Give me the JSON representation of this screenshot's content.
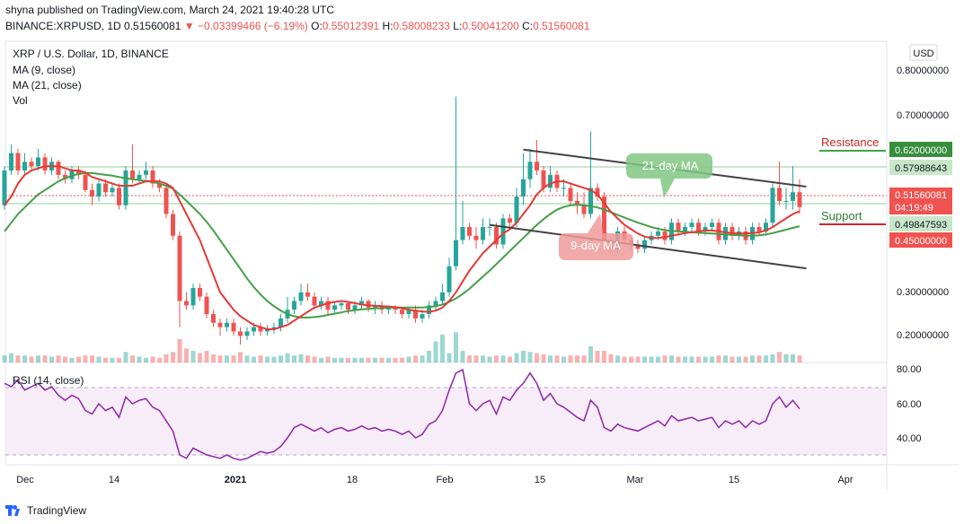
{
  "header": {
    "published": "shyna published on TradingView.com, March 24, 2021 19:40:28 UTC",
    "symbol": "BINANCE:XRPUSD, 1D",
    "last": "0.51560081",
    "change": "▼ −0.03399466 (−6.19%)",
    "o_label": "O:",
    "o": "0.55012391",
    "h_label": "H:",
    "h": "0.58008233",
    "l_label": "L:",
    "l": "0.50041200",
    "c_label": "C:",
    "c": "0.51560081"
  },
  "legend": {
    "title": "XRP / U.S. Dollar, 1D, BINANCE",
    "ma9": "MA (9, close)",
    "ma21": "MA (21, close)",
    "vol": "Vol",
    "rsi": "RSI (14, close)"
  },
  "currency_button": "USD",
  "price_axis": [
    "0.80000000",
    "0.70000000",
    "0.30000000",
    "0.20000000"
  ],
  "price_labels": {
    "p0620": "0.62000000",
    "p0580": "0.57988643",
    "p0516": "0.51560081",
    "countdown": "04:19:49",
    "p0498": "0.49847593",
    "p0450": "0.45000000"
  },
  "rsi_axis": [
    "80.00",
    "60.00",
    "40.00"
  ],
  "date_axis": [
    "Dec",
    "14",
    "2021",
    "18",
    "Feb",
    "15",
    "Mar",
    "15",
    "Apr"
  ],
  "annotations": {
    "resistance": "Resistance",
    "support": "Support",
    "ma21_tag": "21-day MA",
    "ma9_tag": "9-day MA"
  },
  "logo_text": "TradingView",
  "colors": {
    "up": "#26a69a",
    "down": "#ef5350",
    "ma9": "#e53935",
    "ma21": "#43a047",
    "rsi": "#8e24aa",
    "channel": "#424242"
  },
  "chart_data": {
    "type": "candlestick",
    "title": "XRP / U.S. Dollar, 1D, BINANCE",
    "x_dates": [
      "2020-11-26",
      "2020-11-27",
      "2020-11-28",
      "2020-11-29",
      "2020-11-30",
      "2020-12-01",
      "2020-12-02",
      "2020-12-03",
      "2020-12-04",
      "2020-12-05",
      "2020-12-06",
      "2020-12-07",
      "2020-12-08",
      "2020-12-09",
      "2020-12-10",
      "2020-12-11",
      "2020-12-12",
      "2020-12-13",
      "2020-12-14",
      "2020-12-15",
      "2020-12-16",
      "2020-12-17",
      "2020-12-18",
      "2020-12-19",
      "2020-12-20",
      "2020-12-21",
      "2020-12-22",
      "2020-12-23",
      "2020-12-24",
      "2020-12-25",
      "2020-12-26",
      "2020-12-27",
      "2020-12-28",
      "2020-12-29",
      "2020-12-30",
      "2020-12-31",
      "2021-01-01",
      "2021-01-02",
      "2021-01-03",
      "2021-01-04",
      "2021-01-05",
      "2021-01-06",
      "2021-01-07",
      "2021-01-08",
      "2021-01-09",
      "2021-01-10",
      "2021-01-11",
      "2021-01-12",
      "2021-01-13",
      "2021-01-14",
      "2021-01-15",
      "2021-01-16",
      "2021-01-17",
      "2021-01-18",
      "2021-01-19",
      "2021-01-20",
      "2021-01-21",
      "2021-01-22",
      "2021-01-23",
      "2021-01-24",
      "2021-01-25",
      "2021-01-26",
      "2021-01-27",
      "2021-01-28",
      "2021-01-29",
      "2021-01-30",
      "2021-01-31",
      "2021-02-01",
      "2021-02-02",
      "2021-02-03",
      "2021-02-04",
      "2021-02-05",
      "2021-02-06",
      "2021-02-07",
      "2021-02-08",
      "2021-02-09",
      "2021-02-10",
      "2021-02-11",
      "2021-02-12",
      "2021-02-13",
      "2021-02-14",
      "2021-02-15",
      "2021-02-16",
      "2021-02-17",
      "2021-02-18",
      "2021-02-19",
      "2021-02-20",
      "2021-02-21",
      "2021-02-22",
      "2021-02-23",
      "2021-02-24",
      "2021-02-25",
      "2021-02-26",
      "2021-02-27",
      "2021-02-28",
      "2021-03-01",
      "2021-03-02",
      "2021-03-03",
      "2021-03-04",
      "2021-03-05",
      "2021-03-06",
      "2021-03-07",
      "2021-03-08",
      "2021-03-09",
      "2021-03-10",
      "2021-03-11",
      "2021-03-12",
      "2021-03-13",
      "2021-03-14",
      "2021-03-15",
      "2021-03-16",
      "2021-03-17",
      "2021-03-18",
      "2021-03-19",
      "2021-03-20",
      "2021-03-21",
      "2021-03-22",
      "2021-03-23",
      "2021-03-24"
    ],
    "open": [
      0.52,
      0.6,
      0.64,
      0.6,
      0.62,
      0.61,
      0.63,
      0.6,
      0.62,
      0.59,
      0.58,
      0.6,
      0.59,
      0.555,
      0.54,
      0.57,
      0.55,
      0.56,
      0.52,
      0.6,
      0.58,
      0.59,
      0.6,
      0.57,
      0.56,
      0.5,
      0.45,
      0.3,
      0.29,
      0.33,
      0.31,
      0.27,
      0.25,
      0.24,
      0.25,
      0.23,
      0.22,
      0.23,
      0.24,
      0.23,
      0.235,
      0.24,
      0.26,
      0.28,
      0.3,
      0.32,
      0.31,
      0.29,
      0.3,
      0.28,
      0.29,
      0.295,
      0.28,
      0.29,
      0.3,
      0.285,
      0.29,
      0.28,
      0.285,
      0.28,
      0.27,
      0.28,
      0.26,
      0.27,
      0.29,
      0.3,
      0.32,
      0.38,
      0.44,
      0.47,
      0.45,
      0.44,
      0.47,
      0.47,
      0.43,
      0.49,
      0.48,
      0.54,
      0.58,
      0.62,
      0.6,
      0.56,
      0.59,
      0.56,
      0.56,
      0.53,
      0.52,
      0.5,
      0.56,
      0.54,
      0.44,
      0.42,
      0.46,
      0.44,
      0.43,
      0.42,
      0.44,
      0.45,
      0.46,
      0.44,
      0.48,
      0.46,
      0.47,
      0.48,
      0.46,
      0.47,
      0.48,
      0.44,
      0.47,
      0.45,
      0.46,
      0.44,
      0.47,
      0.46,
      0.48,
      0.56,
      0.53,
      0.53,
      0.55
    ],
    "close": [
      0.6,
      0.64,
      0.6,
      0.62,
      0.61,
      0.63,
      0.6,
      0.62,
      0.59,
      0.58,
      0.6,
      0.59,
      0.555,
      0.54,
      0.57,
      0.55,
      0.56,
      0.52,
      0.6,
      0.58,
      0.59,
      0.6,
      0.57,
      0.56,
      0.5,
      0.45,
      0.3,
      0.29,
      0.33,
      0.31,
      0.27,
      0.25,
      0.24,
      0.25,
      0.23,
      0.22,
      0.23,
      0.24,
      0.23,
      0.235,
      0.24,
      0.26,
      0.28,
      0.3,
      0.32,
      0.31,
      0.29,
      0.3,
      0.28,
      0.29,
      0.295,
      0.28,
      0.29,
      0.3,
      0.285,
      0.29,
      0.28,
      0.285,
      0.28,
      0.27,
      0.28,
      0.26,
      0.27,
      0.29,
      0.3,
      0.32,
      0.38,
      0.44,
      0.47,
      0.45,
      0.44,
      0.47,
      0.47,
      0.43,
      0.49,
      0.48,
      0.54,
      0.58,
      0.62,
      0.6,
      0.56,
      0.59,
      0.56,
      0.56,
      0.53,
      0.52,
      0.5,
      0.56,
      0.54,
      0.44,
      0.42,
      0.46,
      0.44,
      0.43,
      0.42,
      0.44,
      0.45,
      0.46,
      0.44,
      0.48,
      0.46,
      0.47,
      0.48,
      0.46,
      0.47,
      0.48,
      0.44,
      0.47,
      0.45,
      0.46,
      0.44,
      0.47,
      0.46,
      0.48,
      0.56,
      0.53,
      0.53,
      0.55,
      0.516
    ],
    "high": [
      0.61,
      0.66,
      0.65,
      0.64,
      0.63,
      0.65,
      0.64,
      0.63,
      0.625,
      0.6,
      0.61,
      0.61,
      0.6,
      0.57,
      0.58,
      0.58,
      0.57,
      0.57,
      0.61,
      0.66,
      0.6,
      0.62,
      0.61,
      0.58,
      0.57,
      0.51,
      0.46,
      0.32,
      0.34,
      0.34,
      0.32,
      0.28,
      0.26,
      0.26,
      0.26,
      0.24,
      0.24,
      0.25,
      0.25,
      0.245,
      0.25,
      0.27,
      0.31,
      0.31,
      0.34,
      0.34,
      0.32,
      0.31,
      0.31,
      0.3,
      0.3,
      0.3,
      0.3,
      0.31,
      0.305,
      0.3,
      0.3,
      0.29,
      0.29,
      0.285,
      0.285,
      0.29,
      0.28,
      0.3,
      0.31,
      0.34,
      0.4,
      0.77,
      0.53,
      0.48,
      0.47,
      0.49,
      0.49,
      0.48,
      0.5,
      0.5,
      0.56,
      0.64,
      0.65,
      0.67,
      0.61,
      0.61,
      0.6,
      0.58,
      0.57,
      0.55,
      0.55,
      0.69,
      0.57,
      0.55,
      0.45,
      0.47,
      0.47,
      0.45,
      0.44,
      0.45,
      0.46,
      0.47,
      0.47,
      0.49,
      0.49,
      0.48,
      0.49,
      0.49,
      0.48,
      0.49,
      0.49,
      0.48,
      0.48,
      0.47,
      0.47,
      0.48,
      0.48,
      0.49,
      0.57,
      0.62,
      0.56,
      0.61,
      0.58
    ],
    "low": [
      0.51,
      0.59,
      0.59,
      0.59,
      0.6,
      0.6,
      0.59,
      0.59,
      0.58,
      0.57,
      0.57,
      0.58,
      0.55,
      0.52,
      0.53,
      0.54,
      0.54,
      0.51,
      0.51,
      0.57,
      0.57,
      0.58,
      0.56,
      0.55,
      0.49,
      0.44,
      0.24,
      0.28,
      0.28,
      0.3,
      0.26,
      0.24,
      0.22,
      0.23,
      0.22,
      0.2,
      0.21,
      0.22,
      0.22,
      0.22,
      0.225,
      0.23,
      0.25,
      0.27,
      0.29,
      0.3,
      0.28,
      0.28,
      0.27,
      0.27,
      0.28,
      0.27,
      0.27,
      0.28,
      0.275,
      0.27,
      0.27,
      0.27,
      0.27,
      0.26,
      0.26,
      0.25,
      0.25,
      0.26,
      0.28,
      0.29,
      0.31,
      0.37,
      0.43,
      0.44,
      0.42,
      0.43,
      0.45,
      0.42,
      0.42,
      0.47,
      0.47,
      0.52,
      0.56,
      0.59,
      0.55,
      0.55,
      0.55,
      0.54,
      0.52,
      0.5,
      0.49,
      0.49,
      0.53,
      0.43,
      0.41,
      0.41,
      0.43,
      0.42,
      0.41,
      0.41,
      0.43,
      0.44,
      0.43,
      0.43,
      0.45,
      0.45,
      0.46,
      0.45,
      0.45,
      0.46,
      0.43,
      0.43,
      0.44,
      0.44,
      0.43,
      0.43,
      0.45,
      0.45,
      0.47,
      0.52,
      0.51,
      0.51,
      0.5
    ],
    "volume_relative": [
      0.3,
      0.4,
      0.3,
      0.3,
      0.25,
      0.3,
      0.3,
      0.25,
      0.3,
      0.25,
      0.2,
      0.25,
      0.3,
      0.3,
      0.25,
      0.2,
      0.2,
      0.2,
      0.45,
      0.3,
      0.25,
      0.2,
      0.25,
      0.2,
      0.35,
      0.45,
      1.0,
      0.6,
      0.5,
      0.4,
      0.5,
      0.35,
      0.3,
      0.3,
      0.3,
      0.45,
      0.3,
      0.25,
      0.3,
      0.25,
      0.25,
      0.3,
      0.4,
      0.3,
      0.35,
      0.3,
      0.25,
      0.2,
      0.25,
      0.2,
      0.2,
      0.2,
      0.2,
      0.2,
      0.2,
      0.2,
      0.2,
      0.2,
      0.2,
      0.2,
      0.25,
      0.3,
      0.3,
      0.5,
      0.9,
      1.2,
      0.4,
      1.3,
      0.5,
      0.3,
      0.3,
      0.3,
      0.25,
      0.3,
      0.3,
      0.25,
      0.4,
      0.5,
      0.45,
      0.4,
      0.35,
      0.3,
      0.3,
      0.25,
      0.3,
      0.3,
      0.3,
      0.7,
      0.5,
      0.5,
      0.35,
      0.3,
      0.25,
      0.25,
      0.25,
      0.25,
      0.25,
      0.25,
      0.3,
      0.3,
      0.25,
      0.25,
      0.25,
      0.25,
      0.25,
      0.25,
      0.3,
      0.3,
      0.25,
      0.25,
      0.25,
      0.3,
      0.3,
      0.3,
      0.35,
      0.45,
      0.35,
      0.35,
      0.3
    ],
    "ma9": [
      0.52,
      0.54,
      0.57,
      0.59,
      0.6,
      0.605,
      0.61,
      0.61,
      0.61,
      0.605,
      0.6,
      0.6,
      0.595,
      0.585,
      0.58,
      0.575,
      0.57,
      0.565,
      0.565,
      0.565,
      0.57,
      0.575,
      0.575,
      0.575,
      0.57,
      0.56,
      0.53,
      0.5,
      0.47,
      0.44,
      0.4,
      0.36,
      0.32,
      0.3,
      0.28,
      0.265,
      0.255,
      0.245,
      0.24,
      0.235,
      0.235,
      0.24,
      0.245,
      0.255,
      0.265,
      0.275,
      0.285,
      0.29,
      0.295,
      0.298,
      0.3,
      0.298,
      0.295,
      0.292,
      0.29,
      0.289,
      0.288,
      0.287,
      0.286,
      0.283,
      0.28,
      0.278,
      0.276,
      0.275,
      0.278,
      0.285,
      0.3,
      0.32,
      0.345,
      0.37,
      0.39,
      0.41,
      0.425,
      0.44,
      0.455,
      0.465,
      0.48,
      0.5,
      0.52,
      0.545,
      0.56,
      0.57,
      0.575,
      0.575,
      0.57,
      0.565,
      0.56,
      0.555,
      0.545,
      0.525,
      0.505,
      0.49,
      0.475,
      0.465,
      0.455,
      0.448,
      0.445,
      0.445,
      0.447,
      0.45,
      0.453,
      0.456,
      0.458,
      0.46,
      0.462,
      0.462,
      0.46,
      0.458,
      0.456,
      0.455,
      0.455,
      0.456,
      0.458,
      0.462,
      0.47,
      0.48,
      0.49,
      0.5,
      0.506
    ],
    "ma21": [
      0.46,
      0.48,
      0.5,
      0.515,
      0.53,
      0.545,
      0.555,
      0.565,
      0.575,
      0.582,
      0.588,
      0.592,
      0.594,
      0.594,
      0.592,
      0.59,
      0.588,
      0.585,
      0.582,
      0.58,
      0.578,
      0.576,
      0.574,
      0.57,
      0.565,
      0.558,
      0.545,
      0.53,
      0.515,
      0.5,
      0.482,
      0.462,
      0.44,
      0.418,
      0.396,
      0.374,
      0.352,
      0.332,
      0.315,
      0.3,
      0.288,
      0.278,
      0.27,
      0.265,
      0.262,
      0.262,
      0.263,
      0.265,
      0.268,
      0.271,
      0.274,
      0.277,
      0.279,
      0.281,
      0.282,
      0.283,
      0.284,
      0.285,
      0.285,
      0.285,
      0.285,
      0.285,
      0.285,
      0.286,
      0.288,
      0.292,
      0.298,
      0.306,
      0.316,
      0.328,
      0.342,
      0.356,
      0.37,
      0.385,
      0.4,
      0.415,
      0.43,
      0.445,
      0.46,
      0.475,
      0.488,
      0.5,
      0.51,
      0.516,
      0.52,
      0.521,
      0.52,
      0.518,
      0.515,
      0.51,
      0.504,
      0.498,
      0.492,
      0.486,
      0.48,
      0.475,
      0.47,
      0.466,
      0.463,
      0.461,
      0.46,
      0.459,
      0.458,
      0.457,
      0.456,
      0.455,
      0.454,
      0.453,
      0.452,
      0.451,
      0.45,
      0.45,
      0.451,
      0.453,
      0.456,
      0.46,
      0.464,
      0.468,
      0.472
    ],
    "rsi": [
      72,
      70,
      74,
      68,
      70,
      72,
      68,
      70,
      65,
      62,
      65,
      63,
      56,
      54,
      60,
      56,
      58,
      52,
      64,
      60,
      62,
      63,
      58,
      56,
      50,
      44,
      30,
      28,
      34,
      32,
      30,
      29,
      28,
      30,
      28,
      27,
      28,
      30,
      32,
      31,
      32,
      35,
      40,
      46,
      48,
      46,
      44,
      46,
      43,
      45,
      46,
      44,
      45,
      47,
      45,
      46,
      44,
      45,
      44,
      42,
      44,
      40,
      42,
      48,
      50,
      56,
      68,
      78,
      80,
      60,
      56,
      60,
      62,
      54,
      64,
      62,
      68,
      72,
      78,
      72,
      62,
      66,
      60,
      58,
      55,
      52,
      50,
      62,
      58,
      46,
      44,
      48,
      46,
      45,
      44,
      46,
      48,
      50,
      47,
      53,
      50,
      51,
      52,
      50,
      51,
      52,
      46,
      50,
      48,
      50,
      46,
      50,
      48,
      50,
      60,
      64,
      58,
      62,
      57
    ],
    "ylim": [
      0.15,
      0.82
    ],
    "rsi_ylim": [
      25,
      82
    ],
    "rsi_band": [
      30,
      70
    ],
    "horizontal_levels": [
      0.62,
      0.5799,
      0.4985,
      0.45
    ],
    "channel_upper": [
      {
        "date": "2021-02-11",
        "price": 0.648
      },
      {
        "date": "2021-03-25",
        "price": 0.563
      }
    ],
    "channel_lower": [
      {
        "date": "2021-02-06",
        "price": 0.475
      },
      {
        "date": "2021-03-25",
        "price": 0.375
      }
    ],
    "legend_position": "top-left"
  }
}
